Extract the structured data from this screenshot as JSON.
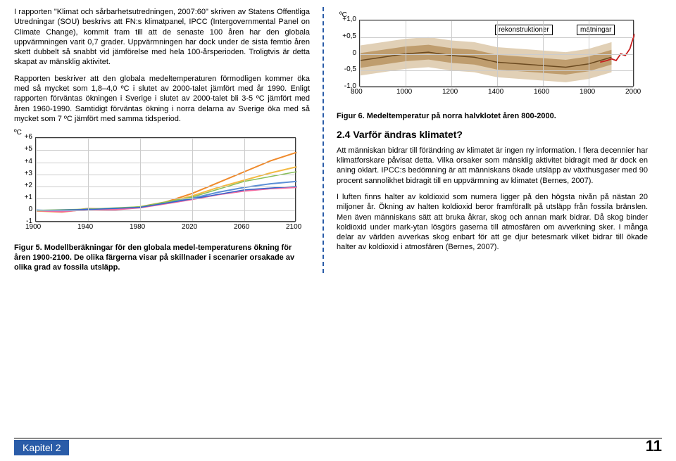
{
  "left": {
    "p1": "I rapporten \"Klimat och sårbarhetsutredningen, 2007:60\" skriven av Statens Offentliga Utredningar (SOU) beskrivs att FN:s klimatpanel, IPCC (Intergovernmental Panel on Climate Change), kommit fram till att de senaste 100 åren har den globala uppvärmningen varit 0,7 grader. Uppvärmningen har dock under de sista femtio åren skett dubbelt så snabbt vid jämförelse med hela 100-årsperioden. Troligtvis är detta skapat av mänsklig aktivitet.",
    "p2": "Rapporten beskriver att den globala medeltemperaturen förmodligen kommer öka med så mycket som 1,8–4,0 ºC i slutet av 2000-talet jämfört med år 1990. Enligt rapporten förväntas ökningen i Sverige i slutet av 2000-talet bli 3-5 ºC jämfört med åren 1960-1990. Samtidigt förväntas ökning i norra delarna av Sverige öka med så mycket som 7 ºC jämfört med samma tidsperiod.",
    "fig5_caption": "Figur 5. Modellberäkningar för den globala medel-temperaturens ökning för åren 1900-2100. De olika färgerna visar på skillnader i scenarier orsakade av olika grad av fossila utsläpp."
  },
  "right": {
    "fig6_caption": "Figur 6. Medeltemperatur på norra halvklotet åren 800-2000.",
    "section": "2.4 Varför ändras klimatet?",
    "p1": "Att människan bidrar till förändring av klimatet är ingen ny information. I flera decennier har klimatforskare påvisat detta. Vilka orsaker som mänsklig aktivitet bidragit med är dock en aning oklart. IPCC:s bedömning är att människans ökade utsläpp av växthusgaser med 90 procent sannolikhet bidragit till en uppvärmning av klimatet (Bernes, 2007).",
    "p2": "I luften finns halter av koldioxid som numera ligger på den högsta nivån på nästan 20 miljoner år. Ökning av halten koldioxid beror framförallt på utsläpp från fossila bränslen. Men även människans sätt att bruka åkrar, skog och annan mark bidrar. Då skog binder koldioxid under mark-ytan lösgörs gaserna till atmosfären om avverkning sker. I många delar av världen avverkas skog enbart för att ge djur betesmark vilket bidrar till ökade halter av koldioxid i atmosfären (Bernes, 2007)."
  },
  "footer": {
    "chapter": "Kapitel 2",
    "page": "11"
  },
  "fig5": {
    "type": "line",
    "y_unit": "ºC",
    "xlim": [
      1900,
      2100
    ],
    "ylim": [
      -1,
      6
    ],
    "xticks": [
      1900,
      1940,
      1980,
      2020,
      2060,
      2100
    ],
    "yticks_labels": [
      "-1",
      "0",
      "+1",
      "+2",
      "+3",
      "+4",
      "+5",
      "+6"
    ],
    "yticks": [
      -1,
      0,
      1,
      2,
      3,
      4,
      5,
      6
    ],
    "grid_color": "#cccccc",
    "series": [
      {
        "color": "#ef8a2b",
        "width": 2,
        "points": [
          [
            1900,
            0.0
          ],
          [
            1920,
            -0.1
          ],
          [
            1940,
            0.15
          ],
          [
            1960,
            0.1
          ],
          [
            1980,
            0.3
          ],
          [
            2000,
            0.7
          ],
          [
            2020,
            1.4
          ],
          [
            2040,
            2.3
          ],
          [
            2060,
            3.2
          ],
          [
            2080,
            4.1
          ],
          [
            2100,
            4.8
          ]
        ]
      },
      {
        "color": "#f4b942",
        "width": 2,
        "points": [
          [
            1900,
            -0.05
          ],
          [
            1920,
            -0.15
          ],
          [
            1940,
            0.1
          ],
          [
            1960,
            0.05
          ],
          [
            1980,
            0.25
          ],
          [
            2000,
            0.65
          ],
          [
            2020,
            1.2
          ],
          [
            2040,
            1.9
          ],
          [
            2060,
            2.5
          ],
          [
            2080,
            3.1
          ],
          [
            2100,
            3.6
          ]
        ]
      },
      {
        "color": "#5b8fd6",
        "width": 2,
        "points": [
          [
            1900,
            0.02
          ],
          [
            1920,
            -0.08
          ],
          [
            1940,
            0.12
          ],
          [
            1960,
            0.08
          ],
          [
            1980,
            0.28
          ],
          [
            2000,
            0.6
          ],
          [
            2020,
            1.0
          ],
          [
            2040,
            1.5
          ],
          [
            2060,
            1.9
          ],
          [
            2080,
            2.2
          ],
          [
            2100,
            2.4
          ]
        ]
      },
      {
        "color": "#ef6aa0",
        "width": 2,
        "points": [
          [
            1900,
            -0.02
          ],
          [
            1920,
            -0.12
          ],
          [
            1940,
            0.08
          ],
          [
            1960,
            0.04
          ],
          [
            1980,
            0.22
          ],
          [
            2000,
            0.55
          ],
          [
            2020,
            0.9
          ],
          [
            2040,
            1.3
          ],
          [
            2060,
            1.6
          ],
          [
            2080,
            1.8
          ],
          [
            2100,
            1.9
          ]
        ]
      },
      {
        "color": "#88c057",
        "width": 1.5,
        "points": [
          [
            1900,
            0.0
          ],
          [
            1940,
            0.1
          ],
          [
            1980,
            0.3
          ],
          [
            2020,
            1.1
          ],
          [
            2060,
            2.4
          ],
          [
            2100,
            3.2
          ]
        ]
      },
      {
        "color": "#3366cc",
        "width": 1.5,
        "points": [
          [
            1900,
            -0.03
          ],
          [
            1940,
            0.07
          ],
          [
            1980,
            0.25
          ],
          [
            2020,
            0.95
          ],
          [
            2060,
            1.7
          ],
          [
            2100,
            2.0
          ]
        ]
      }
    ]
  },
  "fig6": {
    "type": "line",
    "y_unit": "ºC",
    "xlim": [
      800,
      2000
    ],
    "ylim": [
      -1.0,
      1.0
    ],
    "xticks": [
      800,
      1000,
      1200,
      1400,
      1600,
      1800,
      2000
    ],
    "yticks_labels": [
      "-1,0",
      "-0,5",
      "0",
      "+0,5",
      "+1,0"
    ],
    "yticks": [
      -1.0,
      -0.5,
      0,
      0.5,
      1.0
    ],
    "band_color": "#c9a97a",
    "band_inner_color": "#b08850",
    "line_color": "#6b4a20",
    "obs_color": "#c62020",
    "legend_recon": "rekonstruktioner",
    "legend_obs": "mätningar",
    "grid_color": "#cccccc",
    "recon": [
      [
        800,
        -0.2
      ],
      [
        900,
        -0.1
      ],
      [
        1000,
        0.0
      ],
      [
        1100,
        0.05
      ],
      [
        1200,
        -0.05
      ],
      [
        1300,
        -0.1
      ],
      [
        1400,
        -0.25
      ],
      [
        1500,
        -0.3
      ],
      [
        1600,
        -0.35
      ],
      [
        1700,
        -0.4
      ],
      [
        1800,
        -0.3
      ],
      [
        1850,
        -0.2
      ],
      [
        1900,
        -0.1
      ]
    ],
    "obs": [
      [
        1850,
        -0.25
      ],
      [
        1880,
        -0.2
      ],
      [
        1900,
        -0.15
      ],
      [
        1920,
        -0.2
      ],
      [
        1940,
        0.0
      ],
      [
        1960,
        -0.05
      ],
      [
        1980,
        0.15
      ],
      [
        2000,
        0.6
      ]
    ]
  }
}
